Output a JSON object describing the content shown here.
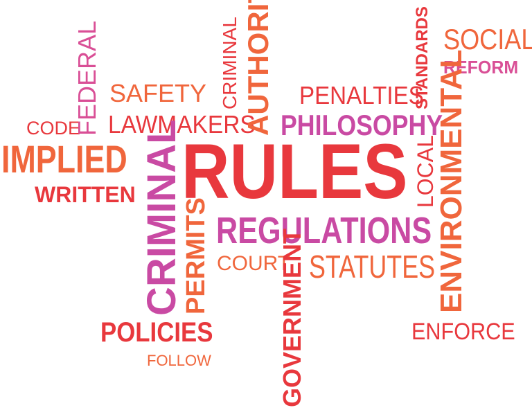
{
  "colors": {
    "red": "#e8383d",
    "orange": "#f0663c",
    "magenta": "#c94aa3",
    "pink": "#d94f96"
  },
  "words": {
    "rules": "RULES",
    "implied": "IMPLIED",
    "written": "WRITTEN",
    "code": "CODE",
    "federal": "FEDERAL",
    "safety": "SAFETY",
    "lawmakers": "LAWMAKERS",
    "criminal_small": "CRIMINAL",
    "authority": "AUTHORITY",
    "penalties": "PENALTIES",
    "standards": "STANDARDS",
    "social": "SOCIAL",
    "reform": "REFORM",
    "philosophy": "PHILOSOPHY",
    "environmental": "ENVIRONMENTAL",
    "local": "LOCAL",
    "criminal_large": "CRIMINAL",
    "permits": "PERMITS",
    "regulations": "REGULATIONS",
    "court": "COURT",
    "statutes": "STATUTES",
    "government": "GOVERNMENT",
    "policies": "POLICIES",
    "follow": "FOLLOW",
    "enforce": "ENFORCE"
  }
}
